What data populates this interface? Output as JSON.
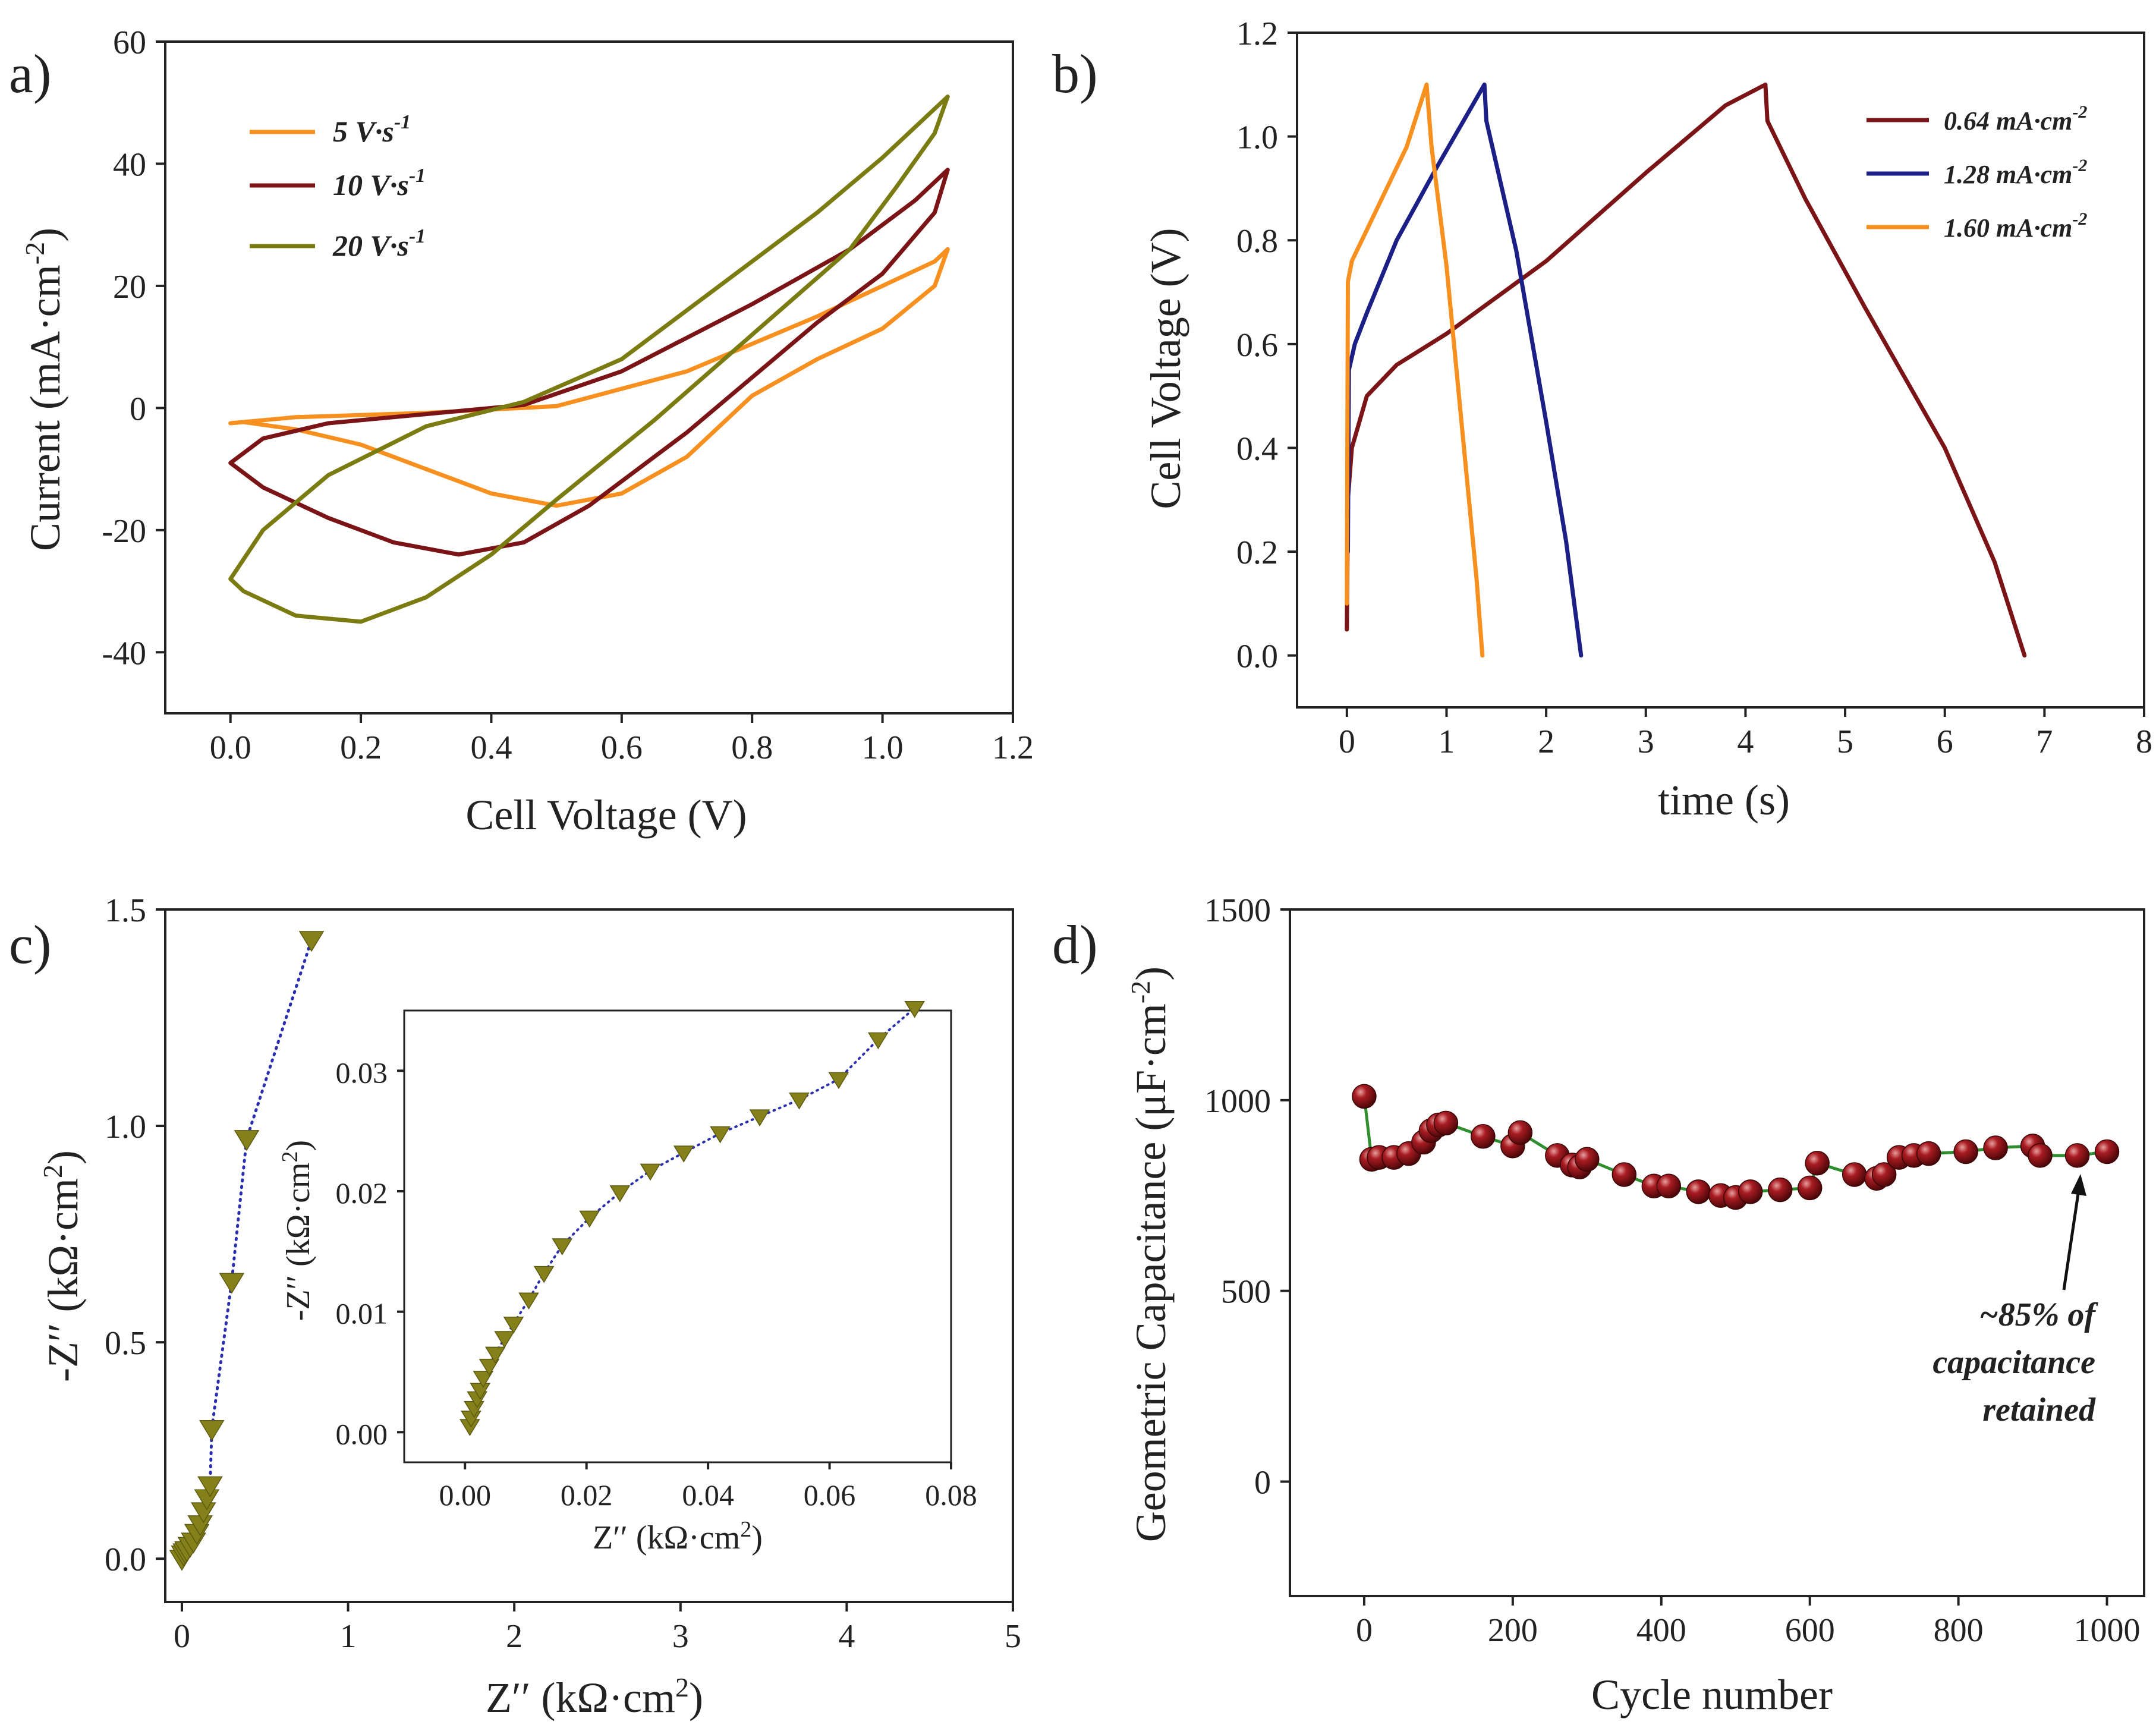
{
  "colors": {
    "orange": "#f7901e",
    "darkred": "#7b1416",
    "olive": "#7a7c12",
    "navy": "#1c1f85",
    "marker_olive": "#84801a",
    "dotline_blue": "#2a2fb0",
    "sphere_red": "#8c1218",
    "green_line": "#2f8f2f"
  },
  "chart_data": [
    {
      "panel": "a)",
      "type": "line",
      "xlabel": "Cell Voltage (V)",
      "ylabel": "Current (mA·cm",
      "ylabel_sup": "-2",
      "ylabel_end": ")",
      "xlim": [
        -0.1,
        1.2
      ],
      "ylim": [
        -50,
        60
      ],
      "xticks": [
        "0.0",
        "0.2",
        "0.4",
        "0.6",
        "0.8",
        "1.0",
        "1.2"
      ],
      "xtick_values": [
        0,
        0.2,
        0.4,
        0.6,
        0.8,
        1.0,
        1.2
      ],
      "yticks": [
        "-40",
        "-20",
        "0",
        "20",
        "40",
        "60"
      ],
      "ytick_values": [
        -40,
        -20,
        0,
        20,
        40,
        60
      ],
      "legend_position": "top-left",
      "series": [
        {
          "name": "5 V·s",
          "name_sup": "-1",
          "color": "#f7901e",
          "points": [
            [
              0,
              -2.5
            ],
            [
              0.1,
              -1.5
            ],
            [
              0.3,
              -0.8
            ],
            [
              0.5,
              0.3
            ],
            [
              0.7,
              6
            ],
            [
              0.9,
              15
            ],
            [
              1.0,
              20
            ],
            [
              1.08,
              24
            ],
            [
              1.1,
              26
            ],
            [
              1.08,
              20
            ],
            [
              1.0,
              13
            ],
            [
              0.9,
              8
            ],
            [
              0.8,
              2
            ],
            [
              0.7,
              -8
            ],
            [
              0.6,
              -14
            ],
            [
              0.5,
              -16
            ],
            [
              0.4,
              -14
            ],
            [
              0.3,
              -10
            ],
            [
              0.2,
              -6
            ],
            [
              0.1,
              -3.5
            ],
            [
              0.02,
              -2.3
            ],
            [
              0,
              -2.5
            ]
          ]
        },
        {
          "name": "10 V·s",
          "name_sup": "-1",
          "color": "#7b1416",
          "points": [
            [
              0,
              -9
            ],
            [
              0.05,
              -5
            ],
            [
              0.15,
              -2.5
            ],
            [
              0.3,
              -1
            ],
            [
              0.45,
              0.5
            ],
            [
              0.6,
              6
            ],
            [
              0.8,
              17
            ],
            [
              0.95,
              26
            ],
            [
              1.05,
              34
            ],
            [
              1.1,
              39
            ],
            [
              1.08,
              32
            ],
            [
              1.0,
              22
            ],
            [
              0.9,
              14
            ],
            [
              0.8,
              5
            ],
            [
              0.7,
              -4
            ],
            [
              0.55,
              -16
            ],
            [
              0.45,
              -22
            ],
            [
              0.35,
              -24
            ],
            [
              0.25,
              -22
            ],
            [
              0.15,
              -18
            ],
            [
              0.05,
              -13
            ],
            [
              0,
              -9
            ]
          ]
        },
        {
          "name": "20 V·s",
          "name_sup": "-1",
          "color": "#7a7c12",
          "points": [
            [
              0,
              -28
            ],
            [
              0.05,
              -20
            ],
            [
              0.15,
              -11
            ],
            [
              0.3,
              -3
            ],
            [
              0.45,
              1
            ],
            [
              0.6,
              8
            ],
            [
              0.75,
              20
            ],
            [
              0.9,
              32
            ],
            [
              1.0,
              41
            ],
            [
              1.1,
              51
            ],
            [
              1.08,
              45
            ],
            [
              1.02,
              36
            ],
            [
              0.95,
              26
            ],
            [
              0.8,
              12
            ],
            [
              0.65,
              -2
            ],
            [
              0.5,
              -15
            ],
            [
              0.4,
              -24
            ],
            [
              0.3,
              -31
            ],
            [
              0.2,
              -35
            ],
            [
              0.1,
              -34
            ],
            [
              0.02,
              -30
            ],
            [
              0,
              -28
            ]
          ]
        }
      ]
    },
    {
      "panel": "b)",
      "type": "line",
      "xlabel": "time (s)",
      "ylabel": "Cell Voltage (V)",
      "xlim": [
        -0.5,
        8
      ],
      "ylim": [
        -0.1,
        1.2
      ],
      "xticks": [
        "0",
        "1",
        "2",
        "3",
        "4",
        "5",
        "6",
        "7",
        "8"
      ],
      "xtick_values": [
        0,
        1,
        2,
        3,
        4,
        5,
        6,
        7,
        8
      ],
      "yticks": [
        "0.0",
        "0.2",
        "0.4",
        "0.6",
        "0.8",
        "1.0",
        "1.2"
      ],
      "ytick_values": [
        0,
        0.2,
        0.4,
        0.6,
        0.8,
        1.0,
        1.2
      ],
      "legend_position": "top-right",
      "series": [
        {
          "name": "0.64 mA·cm",
          "name_sup": "-2",
          "color": "#7b1416",
          "points": [
            [
              0,
              0.05
            ],
            [
              0.01,
              0.3
            ],
            [
              0.05,
              0.4
            ],
            [
              0.2,
              0.5
            ],
            [
              0.5,
              0.56
            ],
            [
              1,
              0.62
            ],
            [
              2,
              0.76
            ],
            [
              3,
              0.93
            ],
            [
              3.8,
              1.06
            ],
            [
              4.2,
              1.1
            ],
            [
              4.22,
              1.03
            ],
            [
              4.6,
              0.88
            ],
            [
              5.2,
              0.67
            ],
            [
              6.0,
              0.4
            ],
            [
              6.5,
              0.18
            ],
            [
              6.8,
              0.0
            ]
          ]
        },
        {
          "name": "1.28 mA·cm",
          "name_sup": "-2",
          "color": "#1c1f85",
          "points": [
            [
              0.01,
              0.2
            ],
            [
              0.02,
              0.55
            ],
            [
              0.08,
              0.6
            ],
            [
              0.2,
              0.66
            ],
            [
              0.5,
              0.8
            ],
            [
              0.9,
              0.94
            ],
            [
              1.2,
              1.04
            ],
            [
              1.38,
              1.1
            ],
            [
              1.4,
              1.03
            ],
            [
              1.7,
              0.78
            ],
            [
              2.0,
              0.45
            ],
            [
              2.2,
              0.22
            ],
            [
              2.35,
              0.0
            ]
          ]
        },
        {
          "name": "1.60 mA·cm",
          "name_sup": "-2",
          "color": "#f7901e",
          "points": [
            [
              0.0,
              0.1
            ],
            [
              0.01,
              0.72
            ],
            [
              0.05,
              0.76
            ],
            [
              0.2,
              0.82
            ],
            [
              0.4,
              0.9
            ],
            [
              0.6,
              0.98
            ],
            [
              0.8,
              1.1
            ],
            [
              0.85,
              0.98
            ],
            [
              1.0,
              0.75
            ],
            [
              1.15,
              0.45
            ],
            [
              1.3,
              0.15
            ],
            [
              1.36,
              0.0
            ]
          ]
        }
      ]
    },
    {
      "panel": "c)",
      "type": "scatter",
      "xlabel": "Z′′ (kΩ·cm",
      "xlabel_sup": "2",
      "xlabel_end": ")",
      "ylabel": "-Z′′ (kΩ·cm",
      "ylabel_sup": "2",
      "ylabel_end": ")",
      "xlim": [
        -0.1,
        5
      ],
      "ylim": [
        -0.1,
        1.5
      ],
      "xticks": [
        "0",
        "1",
        "2",
        "3",
        "4",
        "5"
      ],
      "xtick_values": [
        0,
        1,
        2,
        3,
        4,
        5
      ],
      "yticks": [
        "0.0",
        "0.5",
        "1.0",
        "1.5"
      ],
      "ytick_values": [
        0,
        0.5,
        1.0,
        1.5
      ],
      "points": [
        [
          0.0,
          0.0
        ],
        [
          0.01,
          0.01
        ],
        [
          0.02,
          0.015
        ],
        [
          0.03,
          0.02
        ],
        [
          0.05,
          0.03
        ],
        [
          0.07,
          0.04
        ],
        [
          0.09,
          0.06
        ],
        [
          0.11,
          0.08
        ],
        [
          0.13,
          0.11
        ],
        [
          0.15,
          0.14
        ],
        [
          0.17,
          0.17
        ],
        [
          0.18,
          0.3
        ],
        [
          0.3,
          0.64
        ],
        [
          0.39,
          0.97
        ],
        [
          0.78,
          1.43
        ]
      ],
      "inset": {
        "xlabel": "Z′′ (kΩ·cm",
        "xlabel_sup": "2",
        "xlabel_end": ")",
        "ylabel": "-Z′′ (kΩ·cm",
        "ylabel_sup": "2",
        "ylabel_end": ")",
        "xlim": [
          -0.01,
          0.08
        ],
        "ylim": [
          -0.0025,
          0.035
        ],
        "xticks": [
          "0.00",
          "0.02",
          "0.04",
          "0.06",
          "0.08"
        ],
        "xtick_values": [
          0,
          0.02,
          0.04,
          0.06,
          0.08
        ],
        "yticks": [
          "0.00",
          "0.01",
          "0.02",
          "0.03"
        ],
        "ytick_values": [
          0,
          0.01,
          0.02,
          0.03
        ],
        "points": [
          [
            0.0008,
            0.0005
          ],
          [
            0.001,
            0.0012
          ],
          [
            0.0015,
            0.002
          ],
          [
            0.002,
            0.0028
          ],
          [
            0.0025,
            0.0035
          ],
          [
            0.003,
            0.0045
          ],
          [
            0.004,
            0.0055
          ],
          [
            0.005,
            0.0065
          ],
          [
            0.0065,
            0.0078
          ],
          [
            0.008,
            0.009
          ],
          [
            0.0105,
            0.011
          ],
          [
            0.013,
            0.0132
          ],
          [
            0.016,
            0.0155
          ],
          [
            0.0205,
            0.0178
          ],
          [
            0.0255,
            0.0199
          ],
          [
            0.0305,
            0.0217
          ],
          [
            0.036,
            0.0232
          ],
          [
            0.042,
            0.0248
          ],
          [
            0.0485,
            0.0262
          ],
          [
            0.055,
            0.0276
          ],
          [
            0.0615,
            0.0293
          ],
          [
            0.068,
            0.0326
          ],
          [
            0.074,
            0.0352
          ]
        ]
      }
    },
    {
      "panel": "d)",
      "type": "scatter",
      "xlabel": "Cycle number",
      "ylabel": "Geometric Capacitance (μF·cm",
      "ylabel_sup": "-2",
      "ylabel_end": ")",
      "xlim": [
        -100,
        1050
      ],
      "ylim": [
        -300,
        1500
      ],
      "xticks": [
        "0",
        "200",
        "400",
        "600",
        "800",
        "1000"
      ],
      "xtick_values": [
        0,
        200,
        400,
        600,
        800,
        1000
      ],
      "yticks": [
        "0",
        "500",
        "1000",
        "1500"
      ],
      "ytick_values": [
        0,
        500,
        1000,
        1500
      ],
      "annotation": [
        "~85% of",
        "capacitance",
        "retained"
      ],
      "points": [
        [
          0,
          1010
        ],
        [
          10,
          845
        ],
        [
          20,
          850
        ],
        [
          40,
          850
        ],
        [
          60,
          860
        ],
        [
          80,
          890
        ],
        [
          90,
          920
        ],
        [
          100,
          935
        ],
        [
          110,
          940
        ],
        [
          160,
          905
        ],
        [
          200,
          880
        ],
        [
          210,
          915
        ],
        [
          260,
          855
        ],
        [
          280,
          830
        ],
        [
          290,
          825
        ],
        [
          300,
          845
        ],
        [
          350,
          805
        ],
        [
          390,
          775
        ],
        [
          410,
          775
        ],
        [
          450,
          760
        ],
        [
          480,
          750
        ],
        [
          500,
          745
        ],
        [
          520,
          760
        ],
        [
          560,
          765
        ],
        [
          600,
          770
        ],
        [
          610,
          835
        ],
        [
          660,
          805
        ],
        [
          690,
          795
        ],
        [
          700,
          805
        ],
        [
          720,
          850
        ],
        [
          740,
          855
        ],
        [
          760,
          860
        ],
        [
          810,
          865
        ],
        [
          850,
          875
        ],
        [
          900,
          880
        ],
        [
          910,
          855
        ],
        [
          960,
          855
        ],
        [
          1000,
          865
        ]
      ]
    }
  ]
}
